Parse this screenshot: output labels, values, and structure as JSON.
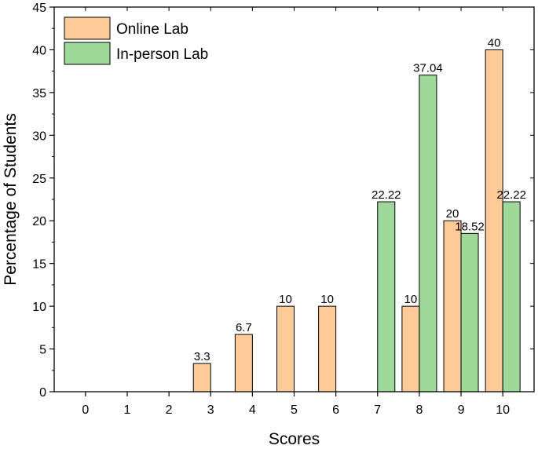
{
  "chart_data": {
    "type": "bar",
    "xlabel": "Scores",
    "ylabel": "Percentage of Students",
    "categories": [
      "0",
      "1",
      "2",
      "3",
      "4",
      "5",
      "6",
      "7",
      "8",
      "9",
      "10"
    ],
    "ylim": [
      0,
      45
    ],
    "yticks": [
      "0",
      "5",
      "10",
      "15",
      "20",
      "25",
      "30",
      "35",
      "40",
      "45"
    ],
    "series": [
      {
        "name": "Online Lab",
        "color": "#FDCA98",
        "values": [
          null,
          null,
          null,
          3.3,
          6.7,
          10,
          10,
          null,
          10,
          20,
          40
        ],
        "labels": [
          "",
          "",
          "",
          "3.3",
          "6.7",
          "10",
          "10",
          "",
          "10",
          "20",
          "40"
        ]
      },
      {
        "name": "In-person Lab",
        "color": "#9ED99A",
        "values": [
          null,
          null,
          null,
          null,
          null,
          null,
          null,
          22.22,
          37.04,
          18.52,
          22.22
        ],
        "labels": [
          "",
          "",
          "",
          "",
          "",
          "",
          "",
          "22.22",
          "37.04",
          "18.52",
          "22.22"
        ]
      }
    ],
    "legend_position": "top-left",
    "grid": false
  }
}
